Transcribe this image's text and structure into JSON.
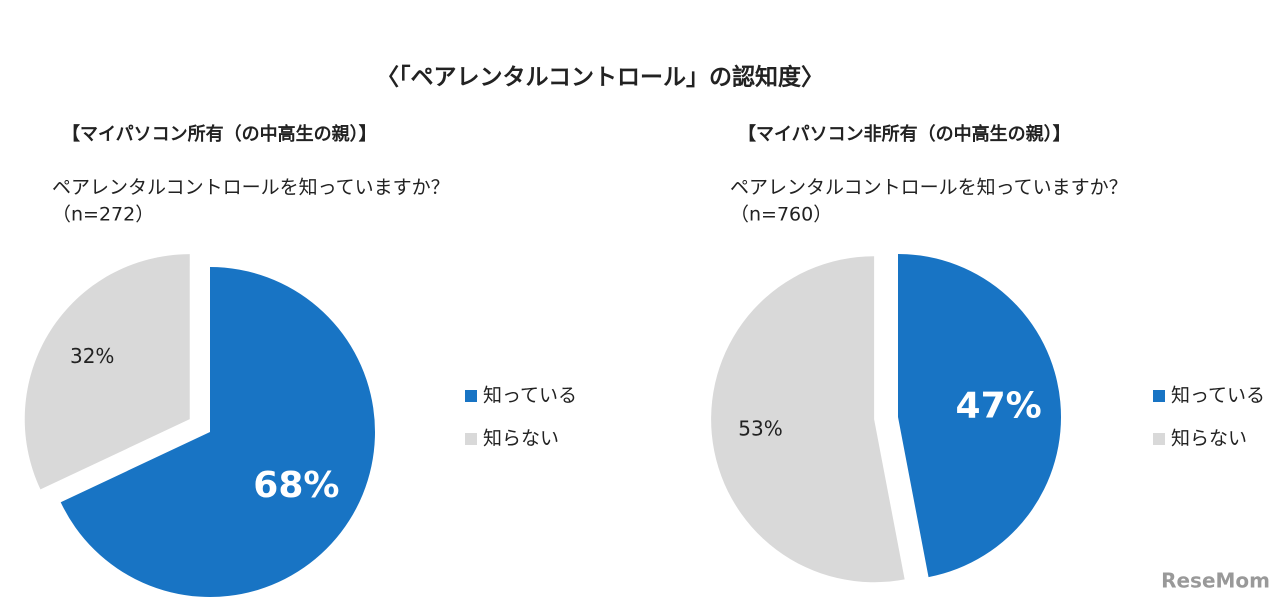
{
  "title": "〈「ペアレンタルコントロール」の認知度〉",
  "watermark": "ReseMom",
  "chart_data": [
    {
      "type": "pie",
      "title": "【マイパソコン所有（の中高生の親）】",
      "subtitle": "ペアレンタルコントロールを知っていますか？",
      "note": "（n=272）",
      "categories": [
        "知っている",
        "知らない"
      ],
      "values": [
        68,
        32
      ],
      "value_labels": [
        "68%",
        "32%"
      ],
      "colors": [
        "#1874c4",
        "#d9d9d9"
      ]
    },
    {
      "type": "pie",
      "title": "【マイパソコン非所有（の中高生の親）】",
      "subtitle": "ペアレンタルコントロールを知っていますか？",
      "note": "（n=760）",
      "categories": [
        "知っている",
        "知らない"
      ],
      "values": [
        47,
        53
      ],
      "value_labels": [
        "47%",
        "53%"
      ],
      "colors": [
        "#1874c4",
        "#d9d9d9"
      ]
    }
  ]
}
